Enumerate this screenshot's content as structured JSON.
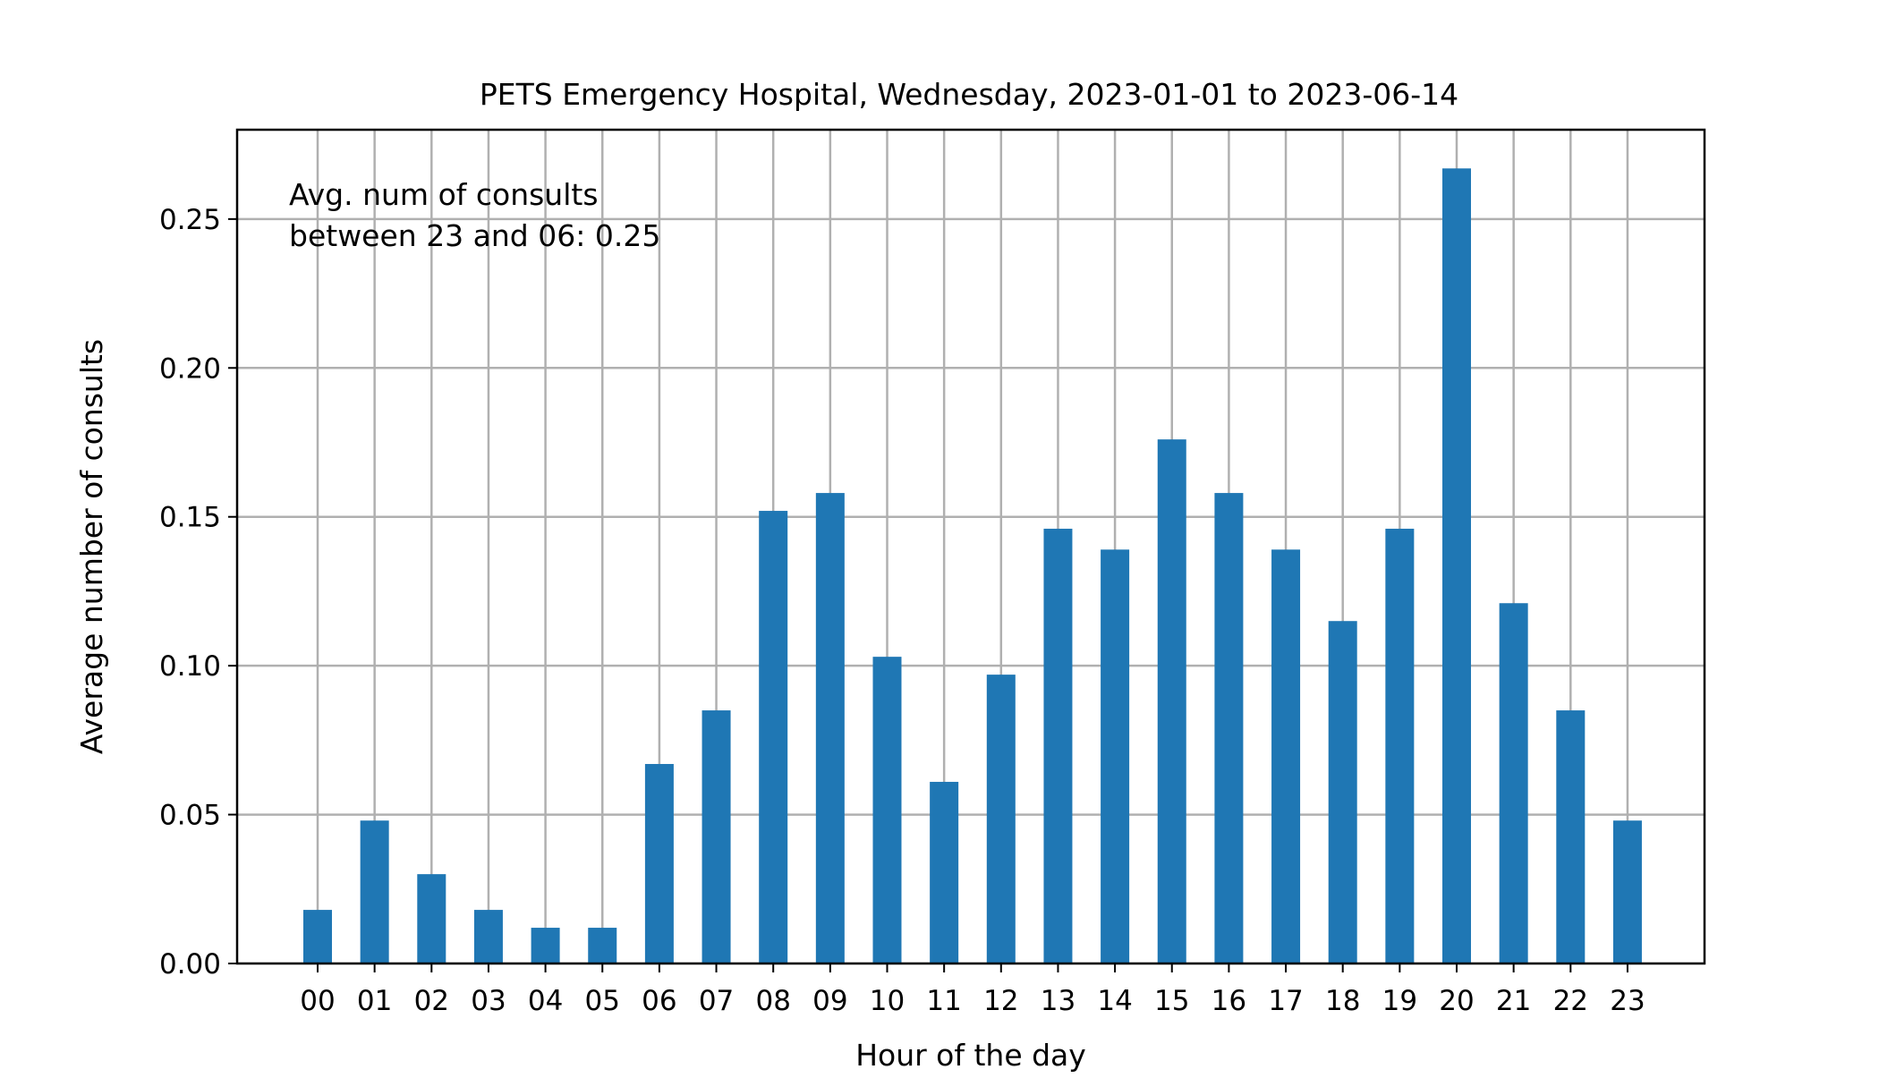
{
  "chart_data": {
    "type": "bar",
    "title": "PETS Emergency Hospital, Wednesday, 2023-01-01 to 2023-06-14",
    "xlabel": "Hour of the day",
    "ylabel": "Average number of consults",
    "categories": [
      "00",
      "01",
      "02",
      "03",
      "04",
      "05",
      "06",
      "07",
      "08",
      "09",
      "10",
      "11",
      "12",
      "13",
      "14",
      "15",
      "16",
      "17",
      "18",
      "19",
      "20",
      "21",
      "22",
      "23"
    ],
    "values": [
      0.018,
      0.048,
      0.03,
      0.018,
      0.012,
      0.012,
      0.067,
      0.085,
      0.152,
      0.158,
      0.103,
      0.061,
      0.097,
      0.146,
      0.139,
      0.176,
      0.158,
      0.139,
      0.115,
      0.146,
      0.267,
      0.121,
      0.085,
      0.048
    ],
    "ylim": [
      0,
      0.28
    ],
    "yticks": [
      0.0,
      0.05,
      0.1,
      0.15,
      0.2,
      0.25
    ],
    "ytick_labels": [
      "0.00",
      "0.05",
      "0.10",
      "0.15",
      "0.20",
      "0.25"
    ],
    "grid": true,
    "bar_color": "#1f77b4",
    "annotation": {
      "line1": "Avg. num of consults",
      "line2": "between 23 and 06: 0.25"
    }
  }
}
